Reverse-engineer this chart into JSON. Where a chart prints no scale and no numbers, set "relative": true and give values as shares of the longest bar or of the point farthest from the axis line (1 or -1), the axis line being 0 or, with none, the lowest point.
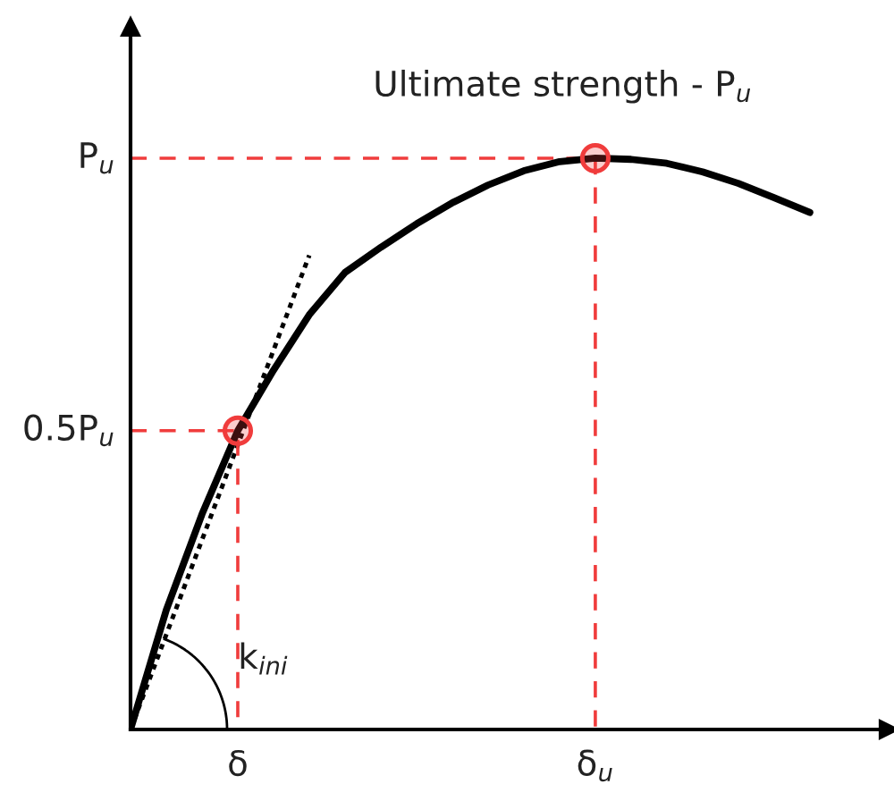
{
  "chart_data": {
    "type": "line",
    "relative": true,
    "categories": [
      null,
      null,
      null,
      "δ",
      null,
      null,
      null,
      null,
      null,
      null,
      null,
      null,
      null,
      "δ$_{u}$",
      null,
      null,
      null,
      null,
      null,
      null
    ],
    "series": [
      {
        "color": "#000000",
        "line_style": "solid",
        "values": [
          0,
          0.209,
          0.377,
          0.523,
          0.629,
          0.726,
          0.8,
          0.844,
          0.885,
          0.922,
          0.953,
          0.978,
          0.994,
          1,
          0.998,
          0.991,
          0.976,
          0.956,
          0.931,
          0.905
        ]
      },
      {
        "color": "#000000",
        "line_style": "dotted",
        "values": [
          0,
          0.166,
          0.332,
          0.498,
          0.664,
          0.83,
          null,
          null,
          null,
          null,
          null,
          null,
          null,
          null,
          null,
          null,
          null,
          null,
          null,
          null
        ]
      },
      {
        "type": "scatter",
        "color": "#f03c3c",
        "marker": "circle",
        "line_style": "dashed",
        "values": [
          null,
          null,
          null,
          0.523,
          null,
          null,
          null,
          null,
          null,
          null,
          null,
          null,
          null,
          1,
          null,
          null,
          null,
          null,
          null,
          null
        ]
      }
    ],
    "annotations": [
      "Ultimate strength - P$_{u}$",
      "k$_{ini}$",
      "P$_{u}$",
      "0.5P$_{u}$"
    ]
  }
}
